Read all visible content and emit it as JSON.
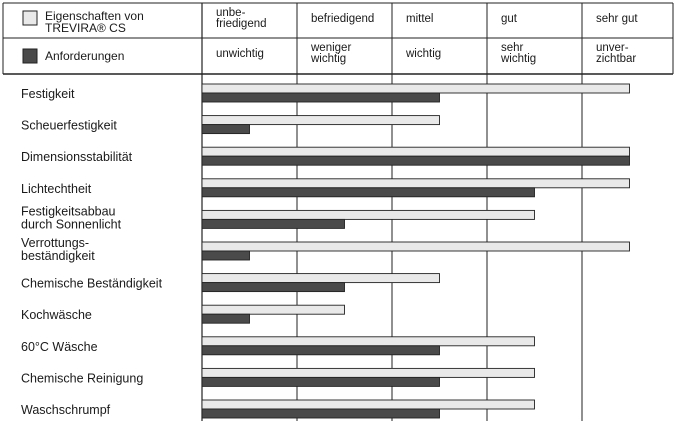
{
  "legend": {
    "light": {
      "line1": "Eigenschaften von",
      "line2": "TREVIRA® CS"
    },
    "dark": {
      "label": "Anforderungen"
    }
  },
  "scale_top": [
    {
      "line1": "unbe-",
      "line2": "friedigend"
    },
    {
      "line1": "befriedigend",
      "line2": ""
    },
    {
      "line1": "mittel",
      "line2": ""
    },
    {
      "line1": "gut",
      "line2": ""
    },
    {
      "line1": "sehr gut",
      "line2": ""
    }
  ],
  "scale_bottom": [
    {
      "line1": "unwichtig",
      "line2": ""
    },
    {
      "line1": "weniger",
      "line2": "wichtig"
    },
    {
      "line1": "wichtig",
      "line2": ""
    },
    {
      "line1": "sehr",
      "line2": "wichtig"
    },
    {
      "line1": "unver-",
      "line2": "zichtbar"
    }
  ],
  "colors": {
    "light_bar": "#e9e9e9",
    "dark_bar": "#4a4a4a",
    "grid": "#222222"
  },
  "chart_data": {
    "type": "bar",
    "orientation": "horizontal",
    "xlim": [
      0,
      4.5
    ],
    "categories": [
      [
        "Festigkeit"
      ],
      [
        "Scheuerfestigkeit"
      ],
      [
        "Dimensionsstabilität"
      ],
      [
        "Lichtechtheit"
      ],
      [
        "Festigkeitsabbau",
        "durch Sonnenlicht"
      ],
      [
        "Verrottungs-",
        "beständigkeit"
      ],
      [
        "Chemische Beständigkeit"
      ],
      [
        "Kochwäsche"
      ],
      [
        "60°C Wäsche"
      ],
      [
        "Chemische Reinigung"
      ],
      [
        "Waschschrumpf"
      ]
    ],
    "series": [
      {
        "name": "Eigenschaften von TREVIRA® CS",
        "values": [
          4.5,
          2.5,
          4.5,
          4.5,
          3.5,
          4.5,
          2.5,
          1.5,
          3.5,
          3.5,
          3.5
        ]
      },
      {
        "name": "Anforderungen",
        "values": [
          2.5,
          0.5,
          4.5,
          3.5,
          1.5,
          0.5,
          1.5,
          0.5,
          2.5,
          2.5,
          2.5
        ]
      }
    ]
  }
}
